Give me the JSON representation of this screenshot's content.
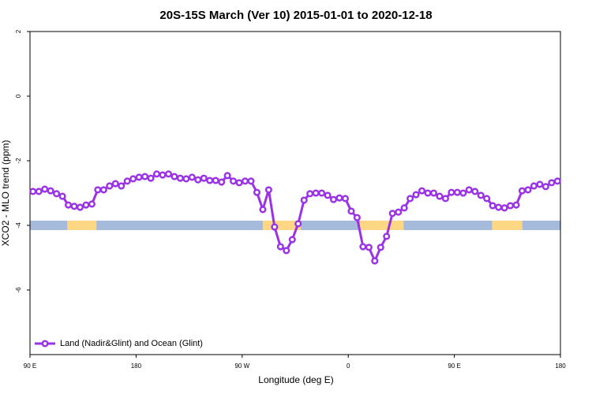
{
  "chart_data": {
    "type": "line",
    "title": "20S-15S March (Ver 10)   2015-01-01 to 2020-12-18",
    "xlabel": "Longitude (deg E)",
    "ylabel": "XCO2 - MLO trend (ppm)",
    "xlim": [
      90,
      540
    ],
    "ylim": [
      -8,
      2
    ],
    "xticks": [
      {
        "value": 90,
        "label": "90 E"
      },
      {
        "value": 180,
        "label": "180"
      },
      {
        "value": 270,
        "label": "90 W"
      },
      {
        "value": 360,
        "label": "0"
      },
      {
        "value": 450,
        "label": "90 E"
      },
      {
        "value": 540,
        "label": "180"
      }
    ],
    "yticks": [
      2,
      0,
      -2,
      -4,
      -6
    ],
    "legend": "bottom-left",
    "band": {
      "y": -4,
      "ocean_color": "#a6bbdb",
      "land_color": "#fdd783",
      "land": [
        [
          121.6,
          146.4
        ],
        [
          287.4,
          319.7
        ],
        [
          370,
          407
        ],
        [
          482,
          507.7
        ]
      ]
    },
    "series": [
      {
        "name": "Land (Nadir&Glint) and Ocean (Glint)",
        "color": "#9a32e6",
        "x": [
          92.5,
          97.5,
          102.5,
          107.5,
          112.5,
          117.5,
          122.5,
          127.5,
          132.5,
          137.5,
          142.5,
          147.5,
          152.5,
          157.5,
          162.5,
          167.5,
          172.5,
          177.5,
          182.5,
          187.5,
          192.5,
          197.5,
          202.5,
          207.5,
          212.5,
          217.5,
          222.5,
          227.5,
          232.5,
          237.5,
          242.5,
          247.5,
          252.5,
          257.5,
          262.5,
          267.5,
          272.5,
          277.5,
          282.5,
          287.5,
          292.5,
          297.5,
          302.5,
          307.5,
          312.5,
          317.5,
          322.5,
          327.5,
          332.5,
          337.5,
          342.5,
          347.5,
          352.5,
          357.5,
          362.5,
          367.5,
          372.5,
          377.5,
          382.5,
          387.5,
          392.5,
          397.5,
          402.5,
          407.5,
          412.5,
          417.5,
          422.5,
          427.5,
          432.5,
          437.5,
          442.5,
          447.5,
          452.5,
          457.5,
          462.5,
          467.5,
          472.5,
          477.5,
          482.5,
          487.5,
          492.5,
          497.5,
          502.5,
          507.5,
          512.5,
          517.5,
          522.5,
          527.5,
          532.5,
          537.5
        ],
        "values": [
          -2.95,
          -2.95,
          -2.88,
          -2.93,
          -3.02,
          -3.1,
          -3.37,
          -3.41,
          -3.44,
          -3.37,
          -3.34,
          -2.9,
          -2.9,
          -2.78,
          -2.71,
          -2.78,
          -2.63,
          -2.56,
          -2.51,
          -2.49,
          -2.54,
          -2.41,
          -2.44,
          -2.41,
          -2.49,
          -2.54,
          -2.56,
          -2.51,
          -2.59,
          -2.54,
          -2.61,
          -2.61,
          -2.66,
          -2.46,
          -2.63,
          -2.68,
          -2.63,
          -2.63,
          -2.98,
          -3.51,
          -2.9,
          -4.05,
          -4.66,
          -4.78,
          -4.44,
          -3.95,
          -3.22,
          -3.02,
          -3.0,
          -3.0,
          -3.07,
          -3.2,
          -3.15,
          -3.17,
          -3.56,
          -3.76,
          -4.66,
          -4.68,
          -5.1,
          -4.68,
          -4.34,
          -3.63,
          -3.59,
          -3.46,
          -3.17,
          -3.05,
          -2.93,
          -3.0,
          -3.0,
          -3.1,
          -3.17,
          -2.98,
          -2.98,
          -3.0,
          -2.9,
          -2.95,
          -3.07,
          -3.17,
          -3.39,
          -3.44,
          -3.46,
          -3.39,
          -3.37,
          -2.93,
          -2.9,
          -2.78,
          -2.73,
          -2.8,
          -2.68,
          -2.63
        ]
      }
    ]
  }
}
